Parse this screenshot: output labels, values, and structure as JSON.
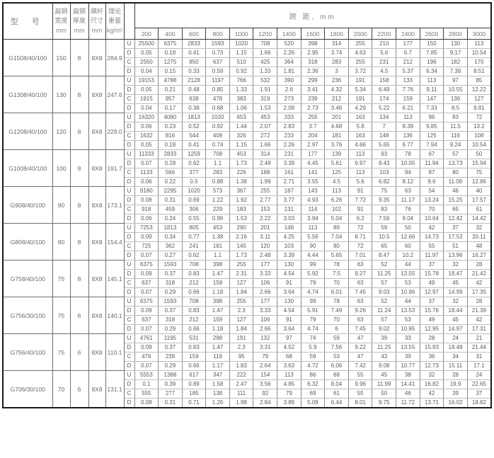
{
  "header": {
    "model_label": "型 号",
    "width_label": "扁钢\n宽度\nmm",
    "thickness_label": "扁钢\n厚度\nmm",
    "crossbar_label": "横杆\n尺寸\nmm",
    "weight_label": "理论\n重量\nkg/m²",
    "span_label": "跨 距, mm",
    "spans": [
      "200",
      "400",
      "600",
      "800",
      "1000",
      "1200",
      "1400",
      "1600",
      "1800",
      "2000",
      "2200",
      "2400",
      "2600",
      "2800",
      "3000"
    ]
  },
  "groups": [
    {
      "model": "G1508/40/100",
      "width": "150",
      "thickness": "8",
      "bar": "8X8",
      "weight": "284.9",
      "rows": [
        {
          "label": "U",
          "values": [
            "25500",
            "6375",
            "2833",
            "1593",
            "1020",
            "708",
            "520",
            "398",
            "314",
            "255",
            "210",
            "177",
            "150",
            "130",
            "113"
          ]
        },
        {
          "label": "D",
          "values": [
            "0.05",
            "0.18",
            "0.41",
            "0.73",
            "1.15",
            "1.66",
            "2.26",
            "2.95",
            "3.74",
            "4.63",
            "5.6",
            "6.7",
            "7.85",
            "9.17",
            "10.54"
          ]
        },
        {
          "label": "C",
          "values": [
            "2550",
            "1275",
            "850",
            "637",
            "510",
            "425",
            "364",
            "318",
            "283",
            "255",
            "231",
            "212",
            "196",
            "182",
            "170"
          ]
        },
        {
          "label": "D",
          "values": [
            "0.04",
            "0.15",
            "0.33",
            "0.59",
            "0.92",
            "1.33",
            "1.81",
            "2.36",
            "3",
            "3.72",
            "4.5",
            "5.37",
            "6.34",
            "7.38",
            "8.51"
          ]
        }
      ]
    },
    {
      "model": "G1308/40/100",
      "width": "130",
      "thickness": "8",
      "bar": "8X8",
      "weight": "247.6",
      "rows": [
        {
          "label": "U",
          "values": [
            "19153",
            "4788",
            "2128",
            "1197",
            "766",
            "532",
            "390",
            "299",
            "236",
            "191",
            "158",
            "133",
            "113",
            "97",
            "85"
          ]
        },
        {
          "label": "D",
          "values": [
            "0.05",
            "0.21",
            "0.48",
            "0.85",
            "1.33",
            "1.91",
            "2.6",
            "3.41",
            "4.32",
            "5.34",
            "6.49",
            "7.76",
            "9.11",
            "10.55",
            "12.22"
          ]
        },
        {
          "label": "C",
          "values": [
            "1915",
            "957",
            "638",
            "478",
            "383",
            "319",
            "273",
            "239",
            "212",
            "191",
            "174",
            "159",
            "147",
            "136",
            "127"
          ]
        },
        {
          "label": "D",
          "values": [
            "0.04",
            "0.17",
            "0.38",
            "0.68",
            "1.06",
            "1.53",
            "2.09",
            "2.73",
            "3.46",
            "4.29",
            "5.22",
            "6.21",
            "7.33",
            "8.5",
            "9.81"
          ]
        }
      ]
    },
    {
      "model": "G1208/40/100",
      "width": "120",
      "thickness": "8",
      "bar": "8X8",
      "weight": "229.0",
      "rows": [
        {
          "label": "U",
          "values": [
            "16320",
            "4080",
            "1813",
            "1020",
            "653",
            "453",
            "333",
            "255",
            "201",
            "163",
            "134",
            "113",
            "96",
            "83",
            "72"
          ]
        },
        {
          "label": "D",
          "values": [
            "0.06",
            "0.23",
            "0.52",
            "0.92",
            "1.44",
            "2.07",
            "2.83",
            "3.7",
            "4.68",
            "5.8",
            "7",
            "8.39",
            "9.85",
            "11.5",
            "13.2"
          ]
        },
        {
          "label": "C",
          "values": [
            "1632",
            "816",
            "544",
            "408",
            "326",
            "272",
            "233",
            "204",
            "181",
            "163",
            "148",
            "136",
            "125",
            "116",
            "108"
          ]
        },
        {
          "label": "D",
          "values": [
            "0.05",
            "0.18",
            "0.41",
            "0.74",
            "1.15",
            "1.66",
            "2.26",
            "2.97",
            "3.76",
            "4.66",
            "5.65",
            "6.77",
            "7.94",
            "9.24",
            "10.54"
          ]
        }
      ]
    },
    {
      "model": "G1008/40/100",
      "width": "100",
      "thickness": "8",
      "bar": "8X8",
      "weight": "191.7",
      "rows": [
        {
          "label": "U",
          "values": [
            "11333",
            "2833",
            "1259",
            "708",
            "453",
            "314",
            "231",
            "177",
            "139",
            "113",
            "93",
            "78",
            "67",
            "57",
            "50"
          ]
        },
        {
          "label": "D",
          "values": [
            "0.07",
            "0.28",
            "0.62",
            "1.1",
            "1.73",
            "2.48",
            "3.39",
            "4.45",
            "5.61",
            "6.97",
            "8.43",
            "10.05",
            "11.94",
            "13.73",
            "15.94"
          ]
        },
        {
          "label": "C",
          "values": [
            "1133",
            "566",
            "377",
            "283",
            "226",
            "188",
            "161",
            "141",
            "125",
            "113",
            "103",
            "94",
            "87",
            "80",
            "75"
          ]
        },
        {
          "label": "D",
          "values": [
            "0.06",
            "0.22",
            "0.5",
            "0.88",
            "1.38",
            "1.99",
            "2.71",
            "3.55",
            "4.5",
            "5.6",
            "6.82",
            "8.12",
            "9.6",
            "11.09",
            "12.86"
          ]
        }
      ]
    },
    {
      "model": "G908/40/100",
      "width": "90",
      "thickness": "8",
      "bar": "8X8",
      "weight": "173.1",
      "rows": [
        {
          "label": "U",
          "values": [
            "9180",
            "2295",
            "1020",
            "573",
            "367",
            "255",
            "187",
            "143",
            "113",
            "91",
            "75",
            "63",
            "54",
            "46",
            "40"
          ]
        },
        {
          "label": "D",
          "values": [
            "0.08",
            "0.31",
            "0.69",
            "1.22",
            "1.92",
            "2.77",
            "3.77",
            "4.93",
            "6.26",
            "7.72",
            "9.35",
            "11.17",
            "13.24",
            "15.25",
            "17.57"
          ]
        },
        {
          "label": "C",
          "values": [
            "918",
            "459",
            "306",
            "229",
            "183",
            "153",
            "131",
            "114",
            "102",
            "91",
            "83",
            "76",
            "70",
            "65",
            "61"
          ]
        },
        {
          "label": "D",
          "values": [
            "0.06",
            "0.24",
            "0.55",
            "0.96",
            "1.53",
            "2.22",
            "3.03",
            "3.94",
            "5.04",
            "6.2",
            "7.56",
            "9.04",
            "10.64",
            "12.42",
            "14.42"
          ]
        }
      ]
    },
    {
      "model": "G808/40/100",
      "width": "80",
      "thickness": "8",
      "bar": "8X8",
      "weight": "154.4",
      "rows": [
        {
          "label": "U",
          "values": [
            "7253",
            "1813",
            "805",
            "453",
            "290",
            "201",
            "148",
            "113",
            "89",
            "72",
            "59",
            "50",
            "42",
            "37",
            "32"
          ]
        },
        {
          "label": "D",
          "values": [
            "0.09",
            "0.34",
            "0.77",
            "1.38",
            "2.16",
            "3.11",
            "4.25",
            "5.56",
            "7.04",
            "8.71",
            "10.5",
            "12.66",
            "14.73",
            "17.53",
            "20.11"
          ]
        },
        {
          "label": "C",
          "values": [
            "725",
            "362",
            "241",
            "181",
            "145",
            "120",
            "103",
            "90",
            "80",
            "72",
            "65",
            "60",
            "55",
            "51",
            "48"
          ]
        },
        {
          "label": "D",
          "values": [
            "0.07",
            "0.27",
            "0.62",
            "1.1",
            "1.73",
            "2.48",
            "3.39",
            "4.44",
            "5.65",
            "7.01",
            "8.47",
            "10.2",
            "11.97",
            "13.96",
            "16.27"
          ]
        }
      ]
    },
    {
      "model": "G758/40/100",
      "width": "75",
      "thickness": "8",
      "bar": "8X8",
      "weight": "145.1",
      "rows": [
        {
          "label": "U",
          "values": [
            "6375",
            "1593",
            "708",
            "398",
            "255",
            "177",
            "130",
            "99",
            "78",
            "63",
            "52",
            "44",
            "37",
            "32",
            "28"
          ]
        },
        {
          "label": "D",
          "values": [
            "0.09",
            "0.37",
            "0.83",
            "1.47",
            "2.31",
            "3.33",
            "4.54",
            "5.92",
            "7.5",
            "9.27",
            "11.25",
            "13.55",
            "15.78",
            "18.47",
            "21.42"
          ]
        },
        {
          "label": "C",
          "values": [
            "637",
            "318",
            "212",
            "159",
            "127",
            "106",
            "91",
            "79",
            "70",
            "63",
            "57",
            "53",
            "49",
            "45",
            "42"
          ]
        },
        {
          "label": "D",
          "values": [
            "0.07",
            "0.29",
            "0.66",
            "1.18",
            "1.84",
            "2.66",
            "3.64",
            "4.74",
            "6.01",
            "7.45",
            "9.03",
            "10.96",
            "12.97",
            "14.99",
            "17.35"
          ]
        }
      ]
    },
    {
      "model": "G756/30/100",
      "width": "75",
      "thickness": "6",
      "bar": "8X8",
      "weight": "140.1",
      "rows": [
        {
          "label": "U",
          "values": [
            "6375",
            "1593",
            "708",
            "398",
            "255",
            "177",
            "130",
            "99",
            "78",
            "63",
            "52",
            "44",
            "37",
            "32",
            "28"
          ]
        },
        {
          "label": "D",
          "values": [
            "0.09",
            "0.37",
            "0.83",
            "1.47",
            "2.3",
            "3.33",
            "4.54",
            "5.91",
            "7.49",
            "9.26",
            "11.24",
            "13.53",
            "15.76",
            "18.44",
            "21.39"
          ]
        },
        {
          "label": "C",
          "values": [
            "637",
            "318",
            "212",
            "159",
            "127",
            "106",
            "91",
            "79",
            "70",
            "63",
            "57",
            "53",
            "49",
            "45",
            "42"
          ]
        },
        {
          "label": "D",
          "values": [
            "0.07",
            "0.29",
            "0.66",
            "1.18",
            "1.84",
            "2.66",
            "3.64",
            "4.74",
            "6",
            "7.45",
            "9.02",
            "10.95",
            "12.95",
            "14.97",
            "17.31"
          ]
        }
      ]
    },
    {
      "model": "G756/40/100",
      "width": "75",
      "thickness": "6",
      "bar": "8X8",
      "weight": "110.1",
      "rows": [
        {
          "label": "U",
          "values": [
            "4761",
            "1195",
            "531",
            "298",
            "191",
            "132",
            "97",
            "74",
            "59",
            "47",
            "39",
            "33",
            "28",
            "24",
            "21"
          ]
        },
        {
          "label": "D",
          "values": [
            "0.09",
            "0.37",
            "0.83",
            "1.47",
            "2.3",
            "3.31",
            "4.52",
            "5.9",
            "7.56",
            "9.22",
            "11.25",
            "13.55",
            "15.93",
            "18.48",
            "21.44"
          ]
        },
        {
          "label": "C",
          "values": [
            "476",
            "239",
            "159",
            "119",
            "95",
            "79",
            "68",
            "59",
            "53",
            "47",
            "43",
            "39",
            "36",
            "34",
            "31"
          ]
        },
        {
          "label": "D",
          "values": [
            "0.07",
            "0.29",
            "0.66",
            "1.17",
            "1.83",
            "2.64",
            "3.63",
            "4.72",
            "6.06",
            "7.42",
            "9.08",
            "10.77",
            "12.73",
            "15.11",
            "17.1"
          ]
        }
      ]
    },
    {
      "model": "G706/30/100",
      "width": "70",
      "thickness": "6",
      "bar": "8X8",
      "weight": "131.1",
      "rows": [
        {
          "label": "U",
          "values": [
            "5553",
            "1388",
            "617",
            "347",
            "222",
            "154",
            "113",
            "86",
            "68",
            "55",
            "45",
            "38",
            "32",
            "28",
            "24"
          ]
        },
        {
          "label": "D",
          "values": [
            "0.1",
            "0.39",
            "0.89",
            "1.58",
            "2.47",
            "3.56",
            "4.85",
            "6.32",
            "8.04",
            "9.96",
            "11.99",
            "14.41",
            "16.82",
            "19.9",
            "22.65"
          ]
        },
        {
          "label": "C",
          "values": [
            "555",
            "277",
            "185",
            "138",
            "111",
            "92",
            "79",
            "69",
            "61",
            "55",
            "50",
            "46",
            "42",
            "39",
            "37"
          ]
        },
        {
          "label": "D",
          "values": [
            "0.08",
            "0.31",
            "0.71",
            "1.26",
            "1.98",
            "2.84",
            "3.89",
            "5.09",
            "6.44",
            "8.01",
            "9.75",
            "11.72",
            "13.71",
            "16.02",
            "18.82"
          ]
        }
      ]
    }
  ]
}
